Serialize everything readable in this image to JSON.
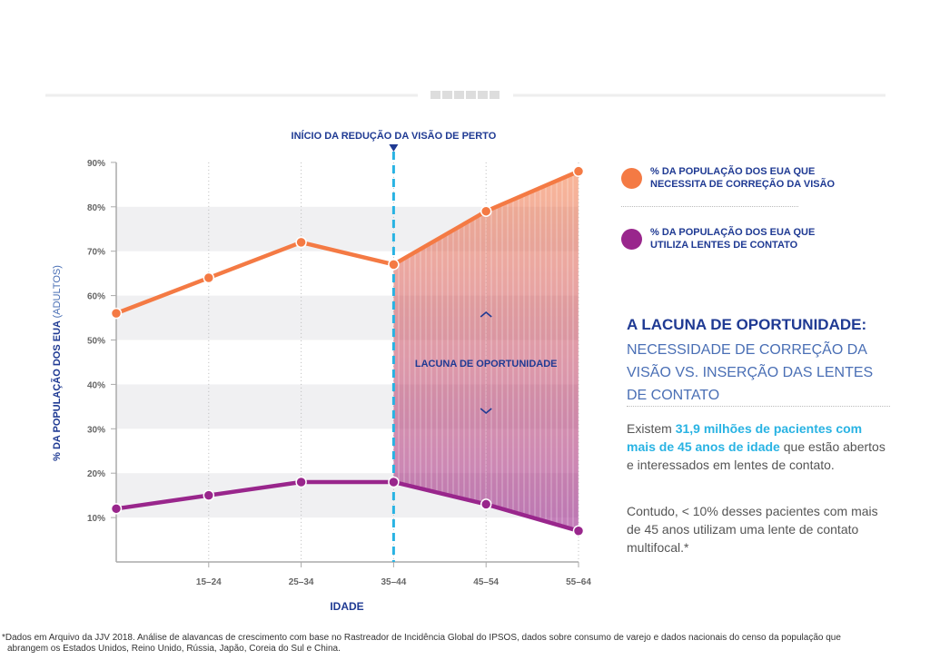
{
  "chart_data": {
    "type": "line",
    "categories": [
      "",
      "15–24",
      "25–34",
      "35–44",
      "45–54",
      "55–64"
    ],
    "series": [
      {
        "name": "% DA POPULAÇÃO DOS EUA QUE NECESSITA DE CORREÇÃO DA VISÃO",
        "color": "#f47a44",
        "values": [
          56,
          64,
          72,
          67,
          79,
          88
        ]
      },
      {
        "name": "% DA POPULAÇÃO DOS EUA QUE UTILIZA LENTES DE CONTATO",
        "color": "#99268c",
        "values": [
          12,
          15,
          18,
          18,
          13,
          7
        ]
      }
    ],
    "ylim": [
      0,
      90
    ],
    "yticks": [
      "10%",
      "20%",
      "30%",
      "40%",
      "50%",
      "60%",
      "70%",
      "80%",
      "90%"
    ],
    "xlabel": "IDADE",
    "ylabel_bold": "% DA POPULAÇÃO DOS EUA",
    "ylabel_light": "(ADULTOS)",
    "marker_category": "35–44",
    "marker_label": "INÍCIO DA REDUÇÃO DA VISÃO DE PERTO",
    "marker_color": "#29b3e3",
    "gap_label": "LACUNA DE OPORTUNIDADE",
    "legend_placement": "right",
    "grid": "alternating horizontal bands, dotted vertical lines"
  },
  "legend": [
    {
      "line1": "% DA POPULAÇÃO DOS EUA QUE",
      "line2": "NECESSITA DE CORREÇÃO DA VISÃO"
    },
    {
      "line1": "% DA POPULAÇÃO DOS EUA QUE",
      "line2": "UTILIZA LENTES DE CONTATO"
    }
  ],
  "panel": {
    "title": "A LACUNA DE OPORTUNIDADE:",
    "subtitle": "NECESSIDADE DE CORREÇÃO DA VISÃO VS. INSERÇÃO DAS LENTES DE CONTATO",
    "p1_pre": "Existem ",
    "p1_highlight": "31,9 milhões de pacientes com mais de 45 anos de idade",
    "p1_post": " que estão abertos e interessados em lentes de contato.",
    "p2": "Contudo, < 10% desses pacientes com mais de 45 anos utilizam uma lente de contato multifocal.*"
  },
  "footnote": {
    "line1": "*Dados em Arquivo da JJV 2018. Análise de alavancas de crescimento com base no Rastreador de Incidência Global do IPSOS, dados sobre consumo de varejo e dados nacionais do censo da população que",
    "line2": "abrangem os Estados Unidos, Reino Unido, Rússia, Japão, Coreia do Sul e China."
  }
}
